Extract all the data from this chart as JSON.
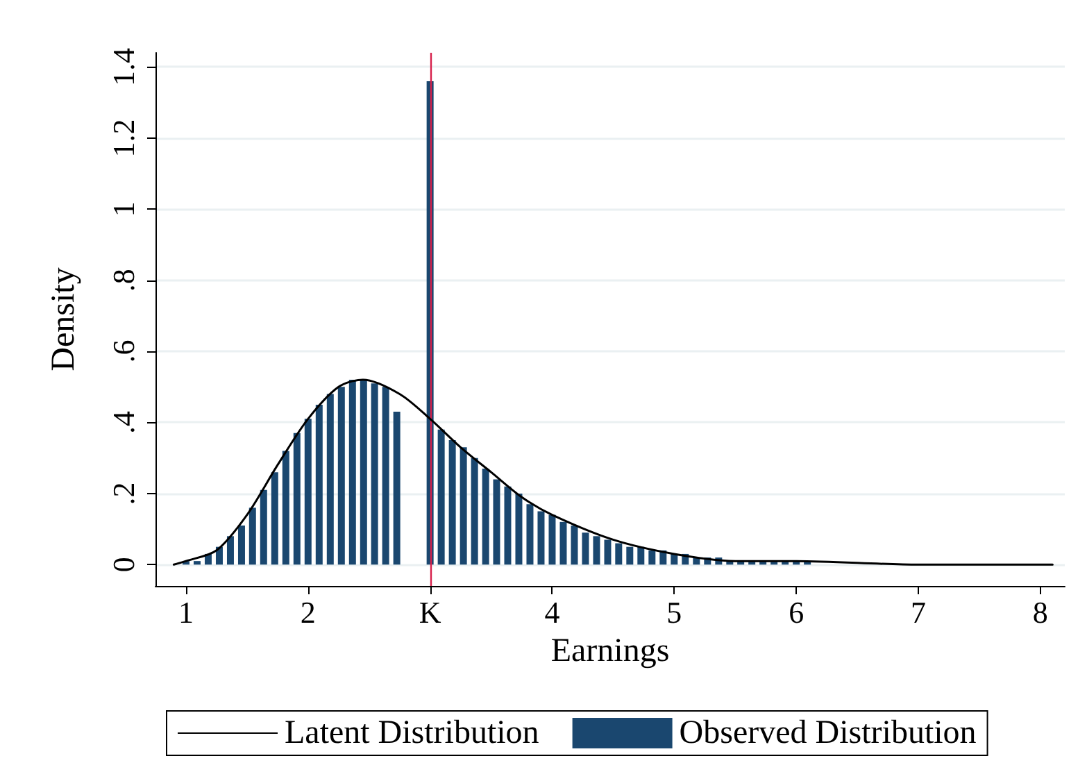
{
  "chart_data": {
    "type": "bar",
    "xlabel": "Earnings",
    "ylabel": "Density",
    "xlim": [
      0.75,
      8.2
    ],
    "xticks": [
      1,
      2,
      {
        "value": 3,
        "label": "K"
      },
      4,
      5,
      6,
      7,
      8
    ],
    "ylim": [
      -0.06,
      1.44
    ],
    "yticks": [
      0,
      {
        "value": 0.2,
        "label": ".2"
      },
      {
        "value": 0.4,
        "label": ".4"
      },
      {
        "value": 0.6,
        "label": ".6"
      },
      {
        "value": 0.8,
        "label": ".8"
      },
      1,
      {
        "value": 1.2,
        "label": "1.2"
      },
      {
        "value": 1.4,
        "label": "1.4"
      }
    ],
    "grid": "y",
    "legend": "bottom",
    "ref_lines": [
      {
        "axis": "x",
        "value": 3,
        "color": "#d6204b"
      }
    ],
    "series": [
      {
        "name": "Latent Distribution",
        "type": "line",
        "color": "#000000",
        "x": [
          0.9,
          1,
          1.25,
          1.5,
          1.75,
          2,
          2.25,
          2.45,
          2.75,
          3,
          3.25,
          3.5,
          3.75,
          4,
          4.5,
          5,
          5.5,
          6,
          7,
          8.1
        ],
        "values": [
          0,
          0.01,
          0.04,
          0.14,
          0.28,
          0.41,
          0.5,
          0.52,
          0.48,
          0.41,
          0.33,
          0.26,
          0.19,
          0.14,
          0.07,
          0.03,
          0.01,
          0.01,
          0,
          0
        ]
      },
      {
        "name": "Observed Distribution",
        "color": "#1a476f",
        "x": [
          0.909,
          1,
          1.091,
          1.182,
          1.273,
          1.364,
          1.455,
          1.545,
          1.636,
          1.727,
          1.818,
          1.909,
          2,
          2.091,
          2.182,
          2.273,
          2.364,
          2.455,
          2.545,
          2.636,
          2.727,
          2.818,
          2.909,
          3,
          3.091,
          3.182,
          3.273,
          3.364,
          3.455,
          3.545,
          3.636,
          3.727,
          3.818,
          3.909,
          4,
          4.091,
          4.182,
          4.273,
          4.364,
          4.455,
          4.545,
          4.636,
          4.727,
          4.818,
          4.909,
          5,
          5.091,
          5.182,
          5.273,
          5.364,
          5.455,
          5.545,
          5.636,
          5.727,
          5.818,
          5.909,
          6,
          6.091,
          6.182,
          6.273,
          6.364,
          6.455,
          6.545,
          6.636,
          6.727,
          6.818,
          6.909,
          7,
          7.091,
          7.182,
          7.273,
          7.364,
          7.455,
          7.545,
          7.636,
          7.727,
          7.818,
          7.909,
          8,
          8.091
        ],
        "values": [
          0,
          0.01,
          0.01,
          0.03,
          0.05,
          0.08,
          0.11,
          0.16,
          0.21,
          0.26,
          0.32,
          0.37,
          0.41,
          0.45,
          0.48,
          0.5,
          0.52,
          0.52,
          0.51,
          0.5,
          0.43,
          null,
          null,
          1.36,
          0.38,
          0.35,
          0.33,
          0.3,
          0.27,
          0.24,
          0.22,
          0.2,
          0.17,
          0.15,
          0.14,
          0.12,
          0.11,
          0.09,
          0.08,
          0.07,
          0.06,
          0.05,
          0.05,
          0.04,
          0.04,
          0.03,
          0.03,
          0.02,
          0.02,
          0.02,
          0.01,
          0.01,
          0.01,
          0.01,
          0.01,
          0.01,
          0.01,
          0.01,
          0,
          0,
          0,
          0,
          0,
          0,
          0,
          0,
          0,
          0,
          0,
          0,
          0,
          0,
          0,
          0,
          0,
          0,
          0,
          0,
          0,
          0
        ]
      }
    ]
  }
}
